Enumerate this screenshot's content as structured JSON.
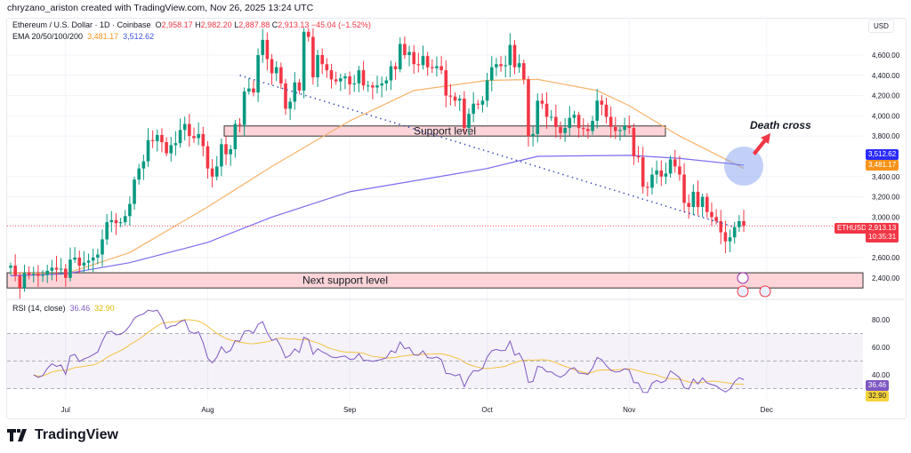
{
  "credit": "chryzano_ariston created with TradingView.com, Nov 26, 2025 13:24 UTC",
  "legend": {
    "symbol": "Ethereum / U.S. Dollar · 1D · Coinbase",
    "open_label": "O",
    "open": "2,958.17",
    "high_label": "H",
    "high": "2,982.20",
    "low_label": "L",
    "low": "2,887.88",
    "close_label": "C",
    "close": "2,913.13",
    "change": "−45.04 (−1.52%)",
    "ema_label": "EMA 20/50/100/200",
    "ema_a": "3,481.17",
    "ema_b": "3,512.62"
  },
  "currency": "USD",
  "price_axis": {
    "ticks": [
      "4,600.00",
      "4,400.00",
      "4,200.00",
      "4,000.00",
      "3,800.00",
      "3,400.00",
      "3,200.00",
      "3,000.00",
      "2,600.00",
      "2,400.00"
    ],
    "tick_values": [
      4600,
      4400,
      4200,
      4000,
      3800,
      3400,
      3200,
      3000,
      2600,
      2400
    ],
    "range": [
      2250,
      4900
    ]
  },
  "price_tags": {
    "ema200": {
      "text": "3,512.62",
      "value": 3512.62,
      "color": "#2b2bff"
    },
    "ema50": {
      "text": "3,481.17",
      "value": 3481.17,
      "color": "#f7931a"
    },
    "symbol_tag": "ETHUSD",
    "last": {
      "text": "2,913.13",
      "value": 2913.13,
      "color": "#f23645"
    },
    "countdown": "10:35:31"
  },
  "time_axis": {
    "labels": [
      "Jul",
      "Aug",
      "Sep",
      "Oct",
      "Nov",
      "Dec"
    ],
    "dates": [
      "2025-07-01",
      "2025-08-01",
      "2025-09-01",
      "2025-10-01",
      "2025-11-01",
      "2025-12-01"
    ]
  },
  "colors": {
    "up": "#089981",
    "down": "#f23645",
    "ema50": "#f7b26b",
    "ema200": "#7b6cf0",
    "rsi": "#7e57c2",
    "rsi_ma": "#f5c242",
    "zone": "#fdd5d8"
  },
  "chart_data": {
    "type": "candlestick",
    "start_date": "2025-06-19",
    "closes": [
      2520,
      2420,
      2300,
      2450,
      2430,
      2440,
      2420,
      2430,
      2470,
      2500,
      2480,
      2490,
      2400,
      2580,
      2600,
      2520,
      2550,
      2570,
      2600,
      2630,
      2780,
      2950,
      2970,
      2940,
      2950,
      3010,
      3130,
      3370,
      3480,
      3550,
      3760,
      3750,
      3810,
      3740,
      3630,
      3710,
      3730,
      3860,
      3920,
      3800,
      3780,
      3820,
      3700,
      3480,
      3400,
      3500,
      3720,
      3620,
      3670,
      3920,
      3910,
      4240,
      4270,
      4230,
      4600,
      4750,
      4560,
      4420,
      4480,
      4320,
      4070,
      4140,
      4330,
      4250,
      4830,
      4780,
      4380,
      4600,
      4510,
      4450,
      4360,
      4340,
      4370,
      4390,
      4310,
      4320,
      4450,
      4300,
      4300,
      4280,
      4300,
      4320,
      4350,
      4490,
      4460,
      4710,
      4600,
      4630,
      4510,
      4500,
      4590,
      4480,
      4470,
      4490,
      4450,
      4200,
      4190,
      4150,
      4170,
      3880,
      4020,
      4120,
      4110,
      4150,
      4350,
      4480,
      4510,
      4490,
      4500,
      4700,
      4480,
      4520,
      4360,
      3800,
      3820,
      4150,
      4120,
      3990,
      3990,
      3890,
      3830,
      3880,
      3980,
      4010,
      3880,
      3870,
      3850,
      3950,
      4150,
      4110,
      3990,
      3890,
      3850,
      3860,
      3900,
      3880,
      3600,
      3590,
      3300,
      3290,
      3420,
      3460,
      3400,
      3430,
      3570,
      3500,
      3420,
      3140,
      3100,
      3250,
      3100,
      3200,
      3050,
      3000,
      2960,
      2850,
      2760,
      2800,
      2900,
      2960,
      2913.13
    ],
    "ema50": [
      [
        "2025-06-19",
        2450
      ],
      [
        "2025-07-01",
        2440
      ],
      [
        "2025-07-15",
        2650
      ],
      [
        "2025-08-01",
        3100
      ],
      [
        "2025-08-15",
        3500
      ],
      [
        "2025-09-01",
        3950
      ],
      [
        "2025-09-15",
        4250
      ],
      [
        "2025-10-01",
        4350
      ],
      [
        "2025-10-12",
        4360
      ],
      [
        "2025-10-25",
        4250
      ],
      [
        "2025-11-01",
        4100
      ],
      [
        "2025-11-12",
        3800
      ],
      [
        "2025-11-26",
        3481.17
      ]
    ],
    "ema200": [
      [
        "2025-06-19",
        2420
      ],
      [
        "2025-07-01",
        2440
      ],
      [
        "2025-07-15",
        2550
      ],
      [
        "2025-08-01",
        2750
      ],
      [
        "2025-08-15",
        3000
      ],
      [
        "2025-09-01",
        3250
      ],
      [
        "2025-10-01",
        3480
      ],
      [
        "2025-10-12",
        3600
      ],
      [
        "2025-11-01",
        3610
      ],
      [
        "2025-11-12",
        3580
      ],
      [
        "2025-11-26",
        3512.62
      ]
    ]
  },
  "annotations": {
    "support_label": "Support level",
    "support_range": [
      3800,
      3900
    ],
    "next_support_label": "Next support level",
    "next_support_range": [
      2300,
      2450
    ],
    "trendline": [
      [
        "2025-08-08",
        4400
      ],
      [
        "2025-11-24",
        2900
      ]
    ],
    "death_cross_label": "Death cross"
  },
  "rsi": {
    "label": "RSI (14, close)",
    "value": "36.46",
    "ma_value": "32.90",
    "ticks": [
      "80.00",
      "60.00",
      "40.00"
    ],
    "tick_values": [
      80,
      60,
      40
    ],
    "bands": [
      70,
      50,
      30
    ]
  },
  "brand": "TradingView"
}
